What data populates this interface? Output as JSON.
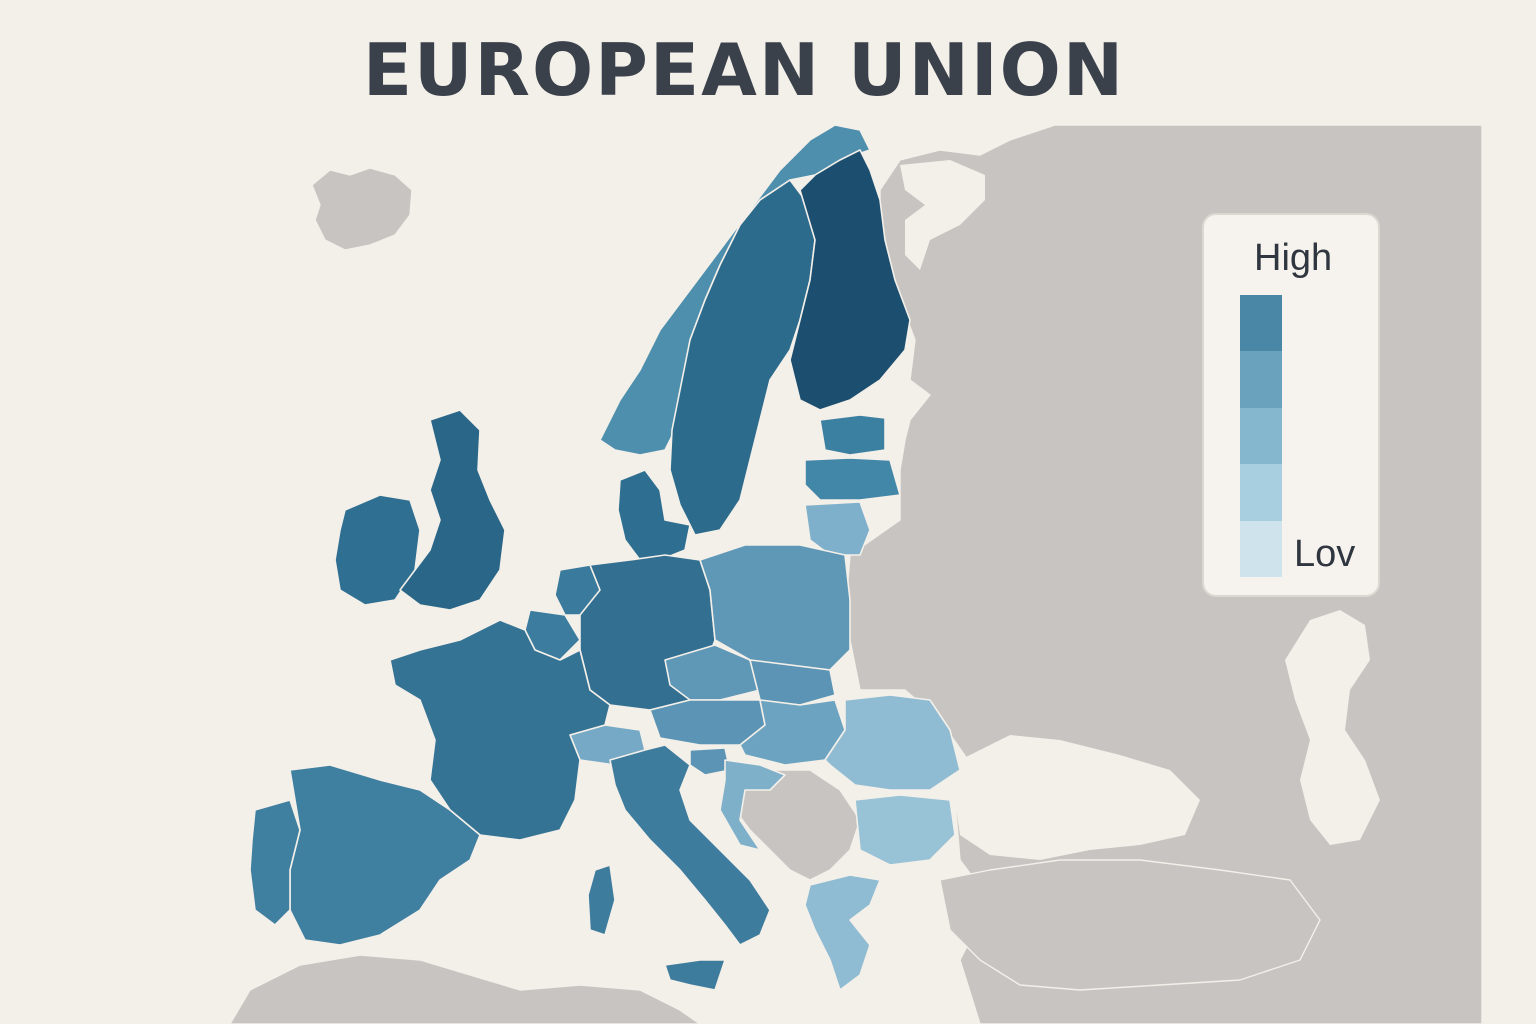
{
  "map": {
    "title": "EUROPEAN UNION",
    "colors": {
      "background": "#f3efe9",
      "non_member": "#c8c4c1",
      "title": "#3a414b"
    }
  },
  "legend": {
    "high_label": "High",
    "low_label": "Lov",
    "steps": [
      "#4a87a6",
      "#6aa2be",
      "#85b8cf",
      "#a8cfe0",
      "#cfe3ec"
    ]
  },
  "regions": [
    {
      "name": "Finland",
      "level": 1.0
    },
    {
      "name": "Sweden",
      "level": 0.86
    },
    {
      "name": "Norway",
      "level": 0.66
    },
    {
      "name": "Ireland",
      "level": 0.84
    },
    {
      "name": "United Kingdom",
      "level": 0.86
    },
    {
      "name": "Denmark",
      "level": 0.84
    },
    {
      "name": "Netherlands",
      "level": 0.8
    },
    {
      "name": "Belgium",
      "level": 0.8
    },
    {
      "name": "Germany",
      "level": 0.82
    },
    {
      "name": "France",
      "level": 0.78
    },
    {
      "name": "Spain",
      "level": 0.72
    },
    {
      "name": "Portugal",
      "level": 0.72
    },
    {
      "name": "Italy",
      "level": 0.7
    },
    {
      "name": "Switzerland",
      "level": 0.45
    },
    {
      "name": "Austria",
      "level": 0.62
    },
    {
      "name": "Czechia",
      "level": 0.55
    },
    {
      "name": "Poland",
      "level": 0.58
    },
    {
      "name": "Slovakia",
      "level": 0.55
    },
    {
      "name": "Hungary",
      "level": 0.5
    },
    {
      "name": "Slovenia",
      "level": 0.55
    },
    {
      "name": "Croatia",
      "level": 0.45
    },
    {
      "name": "Romania",
      "level": 0.35
    },
    {
      "name": "Bulgaria",
      "level": 0.3
    },
    {
      "name": "Greece",
      "level": 0.32
    },
    {
      "name": "Estonia",
      "level": 0.7
    },
    {
      "name": "Latvia",
      "level": 0.68
    },
    {
      "name": "Lithuania",
      "level": 0.45
    }
  ]
}
